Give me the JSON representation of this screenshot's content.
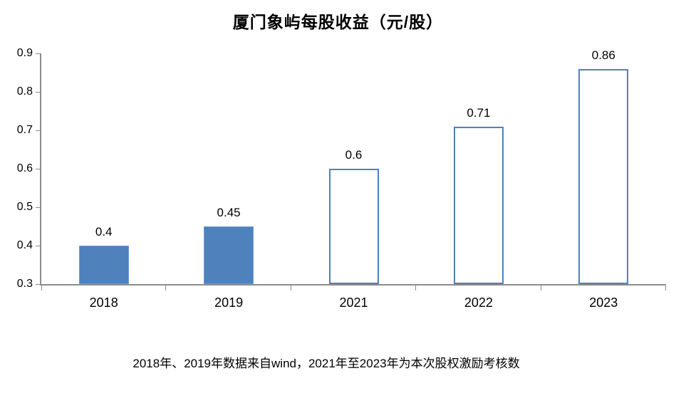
{
  "chart_data": {
    "type": "bar",
    "title": "厦门象屿每股收益（元/股）",
    "categories": [
      "2018",
      "2019",
      "2021",
      "2022",
      "2023"
    ],
    "values": [
      0.4,
      0.45,
      0.6,
      0.71,
      0.86
    ],
    "data_labels": [
      "0.4",
      "0.45",
      "0.6",
      "0.71",
      "0.86"
    ],
    "bar_styles": [
      "solid",
      "solid",
      "outline",
      "outline",
      "outline"
    ],
    "ylim": [
      0.3,
      0.9
    ],
    "yticks": [
      "0.3",
      "0.4",
      "0.5",
      "0.6",
      "0.7",
      "0.8",
      "0.9"
    ],
    "grid": false,
    "legend": "none",
    "colors": {
      "bar_fill": "#4f81bd",
      "bar_fill_edge": "#6f9bd2",
      "bar_outline": "#4f81bd",
      "outline_bar_fill": "#ffffff",
      "axis": "#8c8c8c",
      "text": "#000000"
    }
  },
  "footnote": "2018年、2019年数据来自wind，2021年至2023年为本次股权激励考核数"
}
